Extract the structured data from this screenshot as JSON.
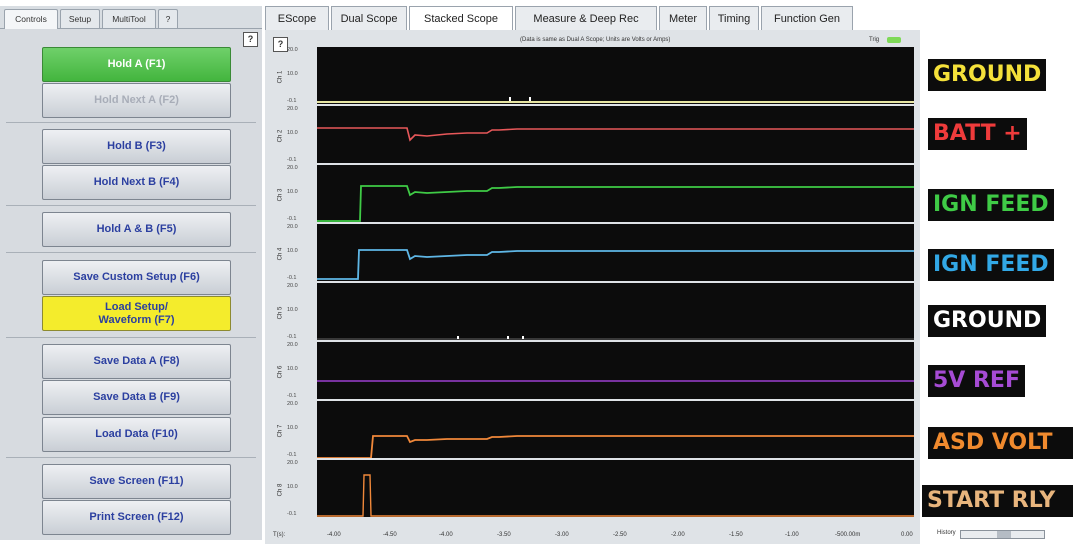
{
  "left_tabs": [
    {
      "label": "Controls",
      "active": true
    },
    {
      "label": "Setup",
      "active": false
    },
    {
      "label": "MultiTool",
      "active": false
    },
    {
      "label": "?",
      "active": false
    }
  ],
  "help_buttons": [
    "?",
    "?"
  ],
  "buttons": [
    {
      "label": "Hold A (F1)",
      "state": "active-green"
    },
    {
      "label": "Hold Next A (F2)",
      "state": "disabled"
    },
    {
      "label": "Hold B (F3)",
      "state": "normal"
    },
    {
      "label": "Hold Next B (F4)",
      "state": "normal"
    },
    {
      "label": "Hold A & B (F5)",
      "state": "normal"
    },
    {
      "label": "Save Custom Setup (F6)",
      "state": "normal"
    },
    {
      "label": "Load Setup/ Waveform (F7)",
      "state": "yellow"
    },
    {
      "label": "Save Data A (F8)",
      "state": "normal"
    },
    {
      "label": "Save Data B (F9)",
      "state": "normal"
    },
    {
      "label": "Load Data (F10)",
      "state": "normal"
    },
    {
      "label": "Save Screen (F11)",
      "state": "normal"
    },
    {
      "label": "Print Screen (F12)",
      "state": "normal"
    }
  ],
  "tabs": [
    {
      "label": "EScope",
      "active": false
    },
    {
      "label": "Dual Scope",
      "active": false
    },
    {
      "label": "Stacked Scope",
      "active": true
    },
    {
      "label": "Measure & Deep Rec",
      "active": false
    },
    {
      "label": "Meter",
      "active": false
    },
    {
      "label": "Timing",
      "active": false
    },
    {
      "label": "Function Gen",
      "active": false
    }
  ],
  "scope": {
    "caption": "(Data is same as Dual A Scope; Units are Volts or Amps)",
    "trig_label": "Trig",
    "x_axis": {
      "label": "T(s):",
      "ticks": [
        "-4.00",
        "-4.50",
        "-4.00",
        "-3.50",
        "-3.00",
        "-2.50",
        "-2.00",
        "-1.50",
        "-1.00",
        "-500.00m",
        "0.00"
      ]
    }
  },
  "channels": [
    {
      "name": "Ch 1",
      "y_ticks": [
        "20.0",
        "10.0",
        "-0.1"
      ],
      "color": "#e8e6a3"
    },
    {
      "name": "Ch 2",
      "y_ticks": [
        "20.0",
        "10.0",
        "-0.1"
      ],
      "color": "#e8585a"
    },
    {
      "name": "Ch 3",
      "y_ticks": [
        "20.0",
        "10.0",
        "-0.1"
      ],
      "color": "#3fcb46"
    },
    {
      "name": "Ch 4",
      "y_ticks": [
        "20.0",
        "10.0",
        "-0.1"
      ],
      "color": "#5fb7e6"
    },
    {
      "name": "Ch 5",
      "y_ticks": [
        "20.0",
        "10.0",
        "-0.1"
      ],
      "color": "#ffffff"
    },
    {
      "name": "Ch 6",
      "y_ticks": [
        "20.0",
        "10.0",
        "-0.1"
      ],
      "color": "#9b3fd0"
    },
    {
      "name": "Ch 7",
      "y_ticks": [
        "20.0",
        "10.0",
        "-0.1"
      ],
      "color": "#f0883a"
    },
    {
      "name": "Ch 8",
      "y_ticks": [
        "20.0",
        "10.0",
        "-0.1"
      ],
      "color": "#f0883a"
    }
  ],
  "signal_labels": [
    {
      "text": "GROUND",
      "color": "#f5e13a"
    },
    {
      "text": "BATT +",
      "color": "#ef3b3b"
    },
    {
      "text": "IGN FEED",
      "color": "#3fcb46"
    },
    {
      "text": "IGN FEED",
      "color": "#32a8e6"
    },
    {
      "text": "GROUND",
      "color": "#ffffff"
    },
    {
      "text": "5V REF",
      "color": "#a64bd4"
    },
    {
      "text": "ASD VOLT",
      "color": "#f08a2e"
    },
    {
      "text": "START RLY",
      "color": "#e8b57d"
    }
  ],
  "history": {
    "label": "History"
  }
}
